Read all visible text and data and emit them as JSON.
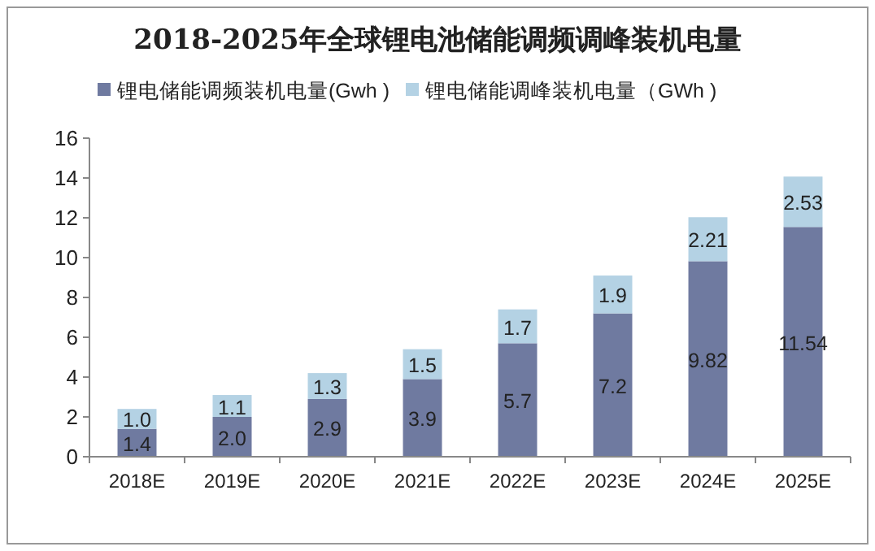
{
  "chart_data": {
    "type": "bar",
    "title": "2018-2025年全球锂电池储能调频调峰装机电量",
    "categories": [
      "2018E",
      "2019E",
      "2020E",
      "2021E",
      "2022E",
      "2023E",
      "2024E",
      "2025E"
    ],
    "series": [
      {
        "name": "锂电储能调频装机电量(Gwh )",
        "color": "#6f7aa0",
        "values": [
          1.4,
          2.0,
          2.9,
          3.9,
          5.7,
          7.2,
          9.82,
          11.54
        ],
        "value_labels": [
          "1.4",
          "2.0",
          "2.9",
          "3.9",
          "5.7",
          "7.2",
          "9.82",
          "11.54"
        ]
      },
      {
        "name": "锂电储能调峰装机电量（GWh )",
        "color": "#b4d2e4",
        "values": [
          1.0,
          1.1,
          1.3,
          1.5,
          1.7,
          1.9,
          2.21,
          2.53
        ],
        "value_labels": [
          "1.0",
          "1.1",
          "1.3",
          "1.5",
          "1.7",
          "1.9",
          "2.21",
          "2.53"
        ]
      }
    ],
    "stacked": true,
    "ylim": [
      0,
      16
    ],
    "yticks": [
      0,
      2,
      4,
      6,
      8,
      10,
      12,
      14,
      16
    ],
    "legend": "top",
    "grid": false
  }
}
